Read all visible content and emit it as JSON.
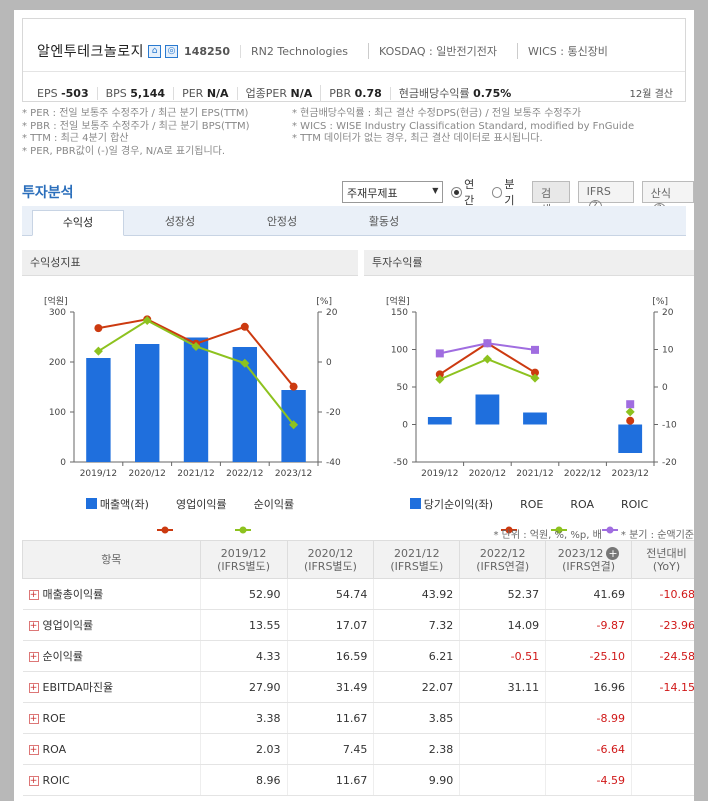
{
  "company": {
    "name": "알엔투테크놀로지",
    "icons": [
      "home-icon",
      "company-info-icon"
    ],
    "code": "148250",
    "english_name": "RN2 Technologies",
    "market": "KOSDAQ : 일반전기전자",
    "wics": "WICS : 통신장비",
    "stats": [
      {
        "label": "EPS",
        "value": "-503"
      },
      {
        "label": "BPS",
        "value": "5,144"
      },
      {
        "label": "PER",
        "value": "N/A"
      },
      {
        "label": "업종PER",
        "value": "N/A"
      },
      {
        "label": "PBR",
        "value": "0.78"
      },
      {
        "label": "현금배당수익률",
        "value": "0.75%"
      }
    ],
    "settlement": "12월 결산"
  },
  "notes": {
    "left": [
      "* PER : 전일 보통주 수정주가 / 최근 분기 EPS(TTM)",
      "* PBR : 전일 보통주 수정주가 / 최근 분기 BPS(TTM)",
      "* TTM : 최근 4분기 합산",
      "* PER, PBR값이 (-)일 경우, N/A로 표기됩니다."
    ],
    "right": [
      "* 현금배당수익률 : 최근 결산 수정DPS(현금) / 전일 보통주 수정주가",
      "* WICS : WISE Industry Classification Standard, modified by FnGuide",
      "* TTM 데이터가 없는 경우, 최근 결산 데이터로 표시됩니다."
    ]
  },
  "analysis": {
    "title": "투자분석",
    "select_value": "주재무제표",
    "radio_annual": "연간",
    "radio_quarter": "분기",
    "search_button": "검색",
    "ifrs_button": "IFRS",
    "help_button": "산식"
  },
  "tabs": [
    "수익성",
    "성장성",
    "안정성",
    "활동성"
  ],
  "chart_left": {
    "header": "수익성지표"
  },
  "chart_right": {
    "header": "투자수익률"
  },
  "chart_data": [
    {
      "type": "bar",
      "title": "수익성지표",
      "categories": [
        "2019/12",
        "2020/12",
        "2021/12",
        "2022/12",
        "2023/12"
      ],
      "ylabel_left": "[억원]",
      "ylabel_right": "[%]",
      "ylim_left": [
        0,
        300
      ],
      "ylim_right": [
        -40,
        20
      ],
      "yticks_left": [
        "300",
        "200",
        "100",
        "0"
      ],
      "yticks_right": [
        "20",
        "0",
        "-20",
        "-40"
      ],
      "series": [
        {
          "name": "매출액(좌)",
          "kind": "bar",
          "axis": "left",
          "color": "#1f6fdd",
          "values": [
            208,
            236,
            249,
            230,
            144
          ]
        },
        {
          "name": "영업이익률",
          "kind": "line",
          "axis": "right",
          "color": "#cc3a10",
          "values": [
            13.55,
            17.07,
            7.32,
            14.09,
            -9.87
          ]
        },
        {
          "name": "순이익률",
          "kind": "line",
          "axis": "right",
          "color": "#8dc21f",
          "values": [
            4.33,
            16.59,
            6.21,
            -0.51,
            -25.1
          ]
        }
      ],
      "grid": false,
      "legend": "bottom"
    },
    {
      "type": "bar",
      "title": "투자수익률",
      "categories": [
        "2019/12",
        "2020/12",
        "2021/12",
        "2022/12",
        "2023/12"
      ],
      "ylabel_left": "[억원]",
      "ylabel_right": "[%]",
      "ylim_left": [
        -50,
        150
      ],
      "ylim_right": [
        -20,
        20
      ],
      "yticks_left": [
        "150",
        "100",
        "50",
        "0",
        "-50"
      ],
      "yticks_right": [
        "20",
        "10",
        "0",
        "-10",
        "-20"
      ],
      "series": [
        {
          "name": "당기순이익(좌)",
          "kind": "bar",
          "axis": "left",
          "color": "#1f6fdd",
          "values": [
            10,
            40,
            16,
            null,
            -38
          ]
        },
        {
          "name": "ROE",
          "kind": "line",
          "axis": "right",
          "color": "#cc3a10",
          "values": [
            3.38,
            11.67,
            3.85,
            null,
            -8.99
          ]
        },
        {
          "name": "ROA",
          "kind": "line",
          "axis": "right",
          "color": "#8dc21f",
          "values": [
            2.03,
            7.45,
            2.38,
            null,
            -6.64
          ]
        },
        {
          "name": "ROIC",
          "kind": "line",
          "axis": "right",
          "color": "#a06de0",
          "values": [
            8.96,
            11.67,
            9.9,
            null,
            -4.59
          ]
        }
      ],
      "grid": false,
      "legend": "bottom"
    }
  ],
  "table": {
    "unit_note": "* 단위 : 억원, %, %p, 배",
    "basis_note": "* 분기 : 순액기준",
    "header_item": "항목",
    "columns": [
      {
        "year": "2019/12",
        "basis": "(IFRS별도)"
      },
      {
        "year": "2020/12",
        "basis": "(IFRS별도)"
      },
      {
        "year": "2021/12",
        "basis": "(IFRS별도)"
      },
      {
        "year": "2022/12",
        "basis": "(IFRS연결)"
      },
      {
        "year": "2023/12",
        "basis": "(IFRS연결)"
      }
    ],
    "yoy_header": "전년대비",
    "yoy_sub": "(YoY)",
    "rows": [
      {
        "label": "매출총이익률",
        "values": [
          "52.90",
          "54.74",
          "43.92",
          "52.37",
          "41.69"
        ],
        "yoy": "-10.68"
      },
      {
        "label": "영업이익률",
        "values": [
          "13.55",
          "17.07",
          "7.32",
          "14.09",
          "-9.87"
        ],
        "yoy": "-23.96"
      },
      {
        "label": "순이익률",
        "values": [
          "4.33",
          "16.59",
          "6.21",
          "-0.51",
          "-25.10"
        ],
        "yoy": "-24.58"
      },
      {
        "label": "EBITDA마진율",
        "values": [
          "27.90",
          "31.49",
          "22.07",
          "31.11",
          "16.96"
        ],
        "yoy": "-14.15"
      },
      {
        "label": "ROE",
        "values": [
          "3.38",
          "11.67",
          "3.85",
          "",
          "-8.99"
        ],
        "yoy": ""
      },
      {
        "label": "ROA",
        "values": [
          "2.03",
          "7.45",
          "2.38",
          "",
          "-6.64"
        ],
        "yoy": ""
      },
      {
        "label": "ROIC",
        "values": [
          "8.96",
          "11.67",
          "9.90",
          "",
          "-4.59"
        ],
        "yoy": ""
      }
    ]
  }
}
